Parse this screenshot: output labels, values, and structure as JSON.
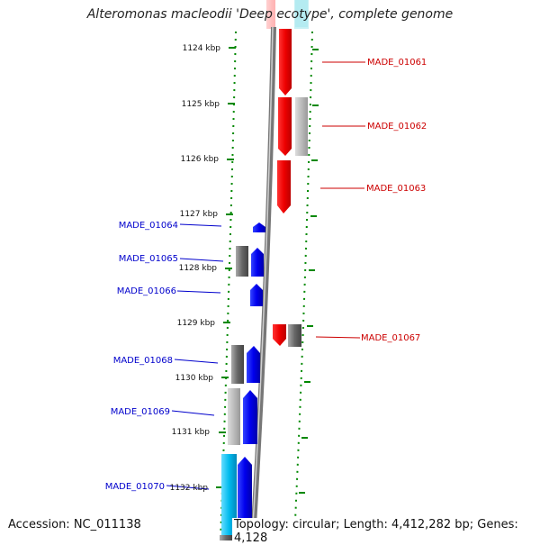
{
  "title": "Alteromonas macleodii 'Deep ecotype', complete genome",
  "ruler_ticks": [
    "1124 kbp",
    "1125 kbp",
    "1126 kbp",
    "1127 kbp",
    "1128 kbp",
    "1129 kbp",
    "1130 kbp",
    "1131 kbp",
    "1132 kbp"
  ],
  "genes_right": [
    "MADE_01061",
    "MADE_01062",
    "MADE_01063",
    "MADE_01067"
  ],
  "genes_left": [
    "MADE_01064",
    "MADE_01065",
    "MADE_01066",
    "MADE_01068",
    "MADE_01069",
    "MADE_01070"
  ],
  "footer": {
    "accession": "Accession: NC_011138",
    "info": "Topology: circular; Length: 4,412,282 bp; Genes: 4,128"
  },
  "colors": {
    "forward_strand": "#ff0000",
    "reverse_strand": "#0000ff",
    "gray_feature": "#888888",
    "cyan_feature": "#00bbdd",
    "ruler": "#008800",
    "backbone": "#888888"
  }
}
